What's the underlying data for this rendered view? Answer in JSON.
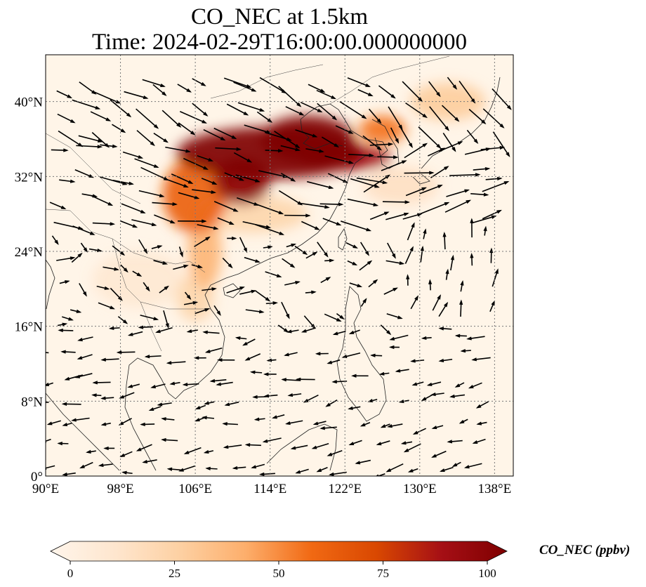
{
  "title": {
    "line1": "CO_NEC at 1.5km",
    "line2": "Time: 2024-02-29T16:00:00.000000000"
  },
  "map": {
    "extent": {
      "lon_min": 90,
      "lon_max": 140,
      "lat_min": 0,
      "lat_max": 45
    },
    "lon_ticks": [
      {
        "value": 90,
        "label": "90°E"
      },
      {
        "value": 98,
        "label": "98°E"
      },
      {
        "value": 106,
        "label": "106°E"
      },
      {
        "value": 114,
        "label": "114°E"
      },
      {
        "value": 122,
        "label": "122°E"
      },
      {
        "value": 130,
        "label": "130°E"
      },
      {
        "value": 138,
        "label": "138°E"
      }
    ],
    "lat_ticks": [
      {
        "value": 0,
        "label": "0°"
      },
      {
        "value": 8,
        "label": "8°N"
      },
      {
        "value": 16,
        "label": "16°N"
      },
      {
        "value": 24,
        "label": "24°N"
      },
      {
        "value": 32,
        "label": "32°N"
      },
      {
        "value": 40,
        "label": "40°N"
      }
    ],
    "gridlines": true,
    "background_color": "#fff5e8",
    "plumes": [
      {
        "lon": 114,
        "lat": 34.5,
        "rlon": 10,
        "rlat": 2.8,
        "value": 100
      },
      {
        "lon": 118,
        "lat": 36,
        "rlon": 5,
        "rlat": 2.5,
        "value": 100
      },
      {
        "lon": 111,
        "lat": 31.5,
        "rlon": 3,
        "rlat": 2.5,
        "value": 95
      },
      {
        "lon": 122,
        "lat": 34,
        "rlon": 5,
        "rlat": 1.4,
        "value": 85
      },
      {
        "lon": 106,
        "lat": 30,
        "rlon": 3.5,
        "rlat": 4,
        "value": 60
      },
      {
        "lon": 107,
        "lat": 24,
        "rlon": 1.8,
        "rlat": 4,
        "value": 40
      },
      {
        "lon": 126,
        "lat": 37,
        "rlon": 2.5,
        "rlat": 1.5,
        "value": 55
      },
      {
        "lon": 133,
        "lat": 40,
        "rlon": 4,
        "rlat": 2,
        "value": 30
      },
      {
        "lon": 112,
        "lat": 28,
        "rlon": 6,
        "rlat": 2,
        "value": 25
      },
      {
        "lon": 106,
        "lat": 19,
        "rlon": 2,
        "rlat": 2.5,
        "value": 25
      },
      {
        "lon": 128,
        "lat": 31,
        "rlon": 4,
        "rlat": 2,
        "value": 18
      },
      {
        "lon": 100,
        "lat": 21,
        "rlon": 5,
        "rlat": 3,
        "value": 12
      }
    ],
    "wind_field_grid": {
      "lon_start": 91,
      "lon_end": 139,
      "lon_step": 2.2,
      "lat_start": 1,
      "lat_end": 44,
      "lat_step": 2.4
    }
  },
  "colorbar": {
    "label": "CO_NEC (ppbv)",
    "min": 0,
    "max": 100,
    "extend": "both",
    "ticks": [
      {
        "value": 0,
        "label": "0"
      },
      {
        "value": 25,
        "label": "25"
      },
      {
        "value": 50,
        "label": "50"
      },
      {
        "value": 75,
        "label": "75"
      },
      {
        "value": 100,
        "label": "100"
      }
    ],
    "colormap": [
      "#fff5eb",
      "#fee6ce",
      "#fdd0a2",
      "#fdae6b",
      "#f16913",
      "#d94801",
      "#a50f15",
      "#7f0000"
    ]
  }
}
